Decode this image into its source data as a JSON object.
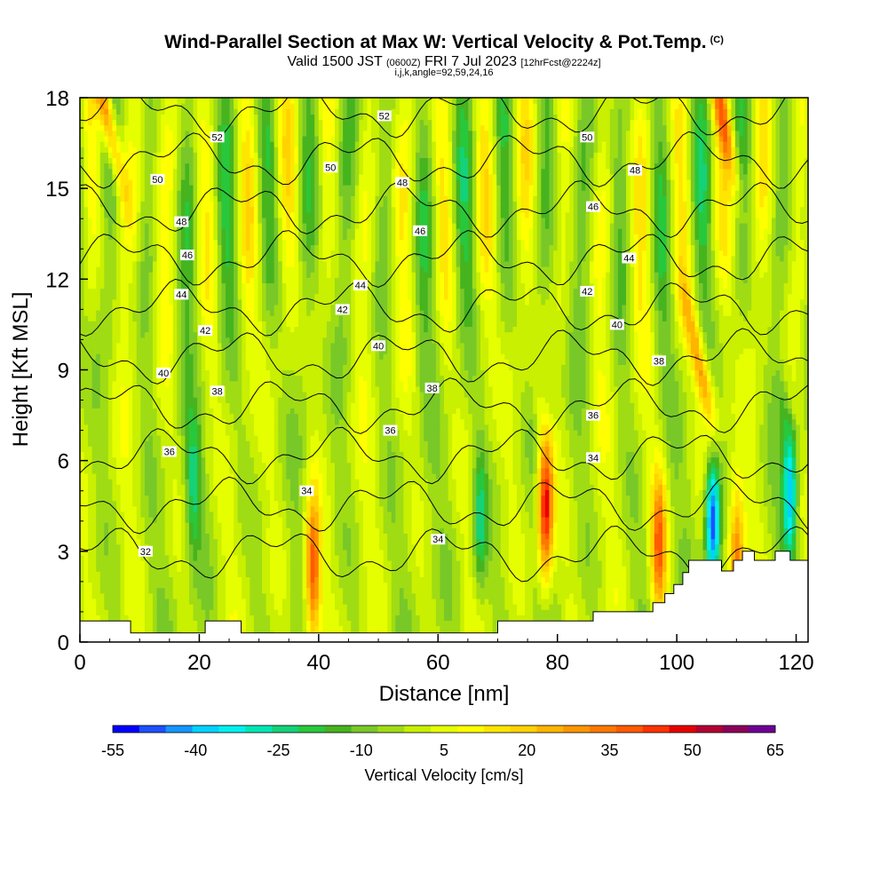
{
  "title": {
    "main": "Wind-Parallel Section at Max W: Vertical Velocity & Pot.Temp.",
    "copyright": "(C)",
    "valid_prefix": "Valid 1500 JST",
    "valid_utc": "(0600Z)",
    "valid_date": "FRI 7 Jul 2023",
    "forecast": "[12hrFcst@2224z]",
    "indices": "i,j,k,angle=92,59,24,16"
  },
  "chart_data": {
    "type": "heatmap",
    "xlabel": "Distance [nm]",
    "ylabel": "Height [Kft MSL]",
    "xlim": [
      0,
      122
    ],
    "ylim": [
      0,
      18
    ],
    "x_ticks": [
      "0",
      "20",
      "40",
      "60",
      "80",
      "100",
      "120"
    ],
    "y_ticks": [
      "0",
      "3",
      "6",
      "9",
      "12",
      "15",
      "18"
    ],
    "colorbar": {
      "label": "Vertical Velocity [cm/s]",
      "tick_labels": [
        "-55",
        "-40",
        "-25",
        "-10",
        "5",
        "20",
        "35",
        "50",
        "65"
      ],
      "range": [
        -55,
        65
      ],
      "step": 5,
      "colors": [
        "#0000ff",
        "#1e50ff",
        "#1496ff",
        "#00d2ff",
        "#00f0f0",
        "#00e6b4",
        "#14d278",
        "#28c83c",
        "#46b41e",
        "#78c828",
        "#a0dc14",
        "#c8f000",
        "#e6ff00",
        "#ffff00",
        "#ffe600",
        "#ffd200",
        "#ffb400",
        "#ff9600",
        "#ff7800",
        "#ff5a00",
        "#ff3200",
        "#e60000",
        "#b40032",
        "#8c005a",
        "#6e0096"
      ]
    },
    "updraft_cores": [
      {
        "x": 15,
        "z": 17.5,
        "w": 40
      },
      {
        "x": 39,
        "z": 2.3,
        "w": 45
      },
      {
        "x": 78,
        "z": 4.5,
        "w": 55
      },
      {
        "x": 97,
        "z": 3.2,
        "w": 38
      },
      {
        "x": 106,
        "z": 9.0,
        "w": 32
      },
      {
        "x": 110,
        "z": 2.6,
        "w": 40
      },
      {
        "x": 118,
        "z": 17.5,
        "w": 30
      }
    ],
    "downdraft_cores": [
      {
        "x": 106,
        "z": 4.0,
        "w": -55
      },
      {
        "x": 119,
        "z": 5.0,
        "w": -40
      },
      {
        "x": 67,
        "z": 4.0,
        "w": -25
      },
      {
        "x": 19,
        "z": 5.0,
        "w": -20
      }
    ],
    "theta_contours": [
      {
        "value": 32,
        "label_at": [
          11,
          3.0
        ]
      },
      {
        "value": 34,
        "label_at": [
          38,
          5.0
        ]
      },
      {
        "value": 34,
        "label_at": [
          60,
          3.4
        ]
      },
      {
        "value": 34,
        "label_at": [
          86,
          6.1
        ]
      },
      {
        "value": 36,
        "label_at": [
          15,
          6.3
        ]
      },
      {
        "value": 36,
        "label_at": [
          52,
          7.0
        ]
      },
      {
        "value": 36,
        "label_at": [
          86,
          7.5
        ]
      },
      {
        "value": 38,
        "label_at": [
          23,
          8.3
        ]
      },
      {
        "value": 38,
        "label_at": [
          59,
          8.4
        ]
      },
      {
        "value": 38,
        "label_at": [
          97,
          9.3
        ]
      },
      {
        "value": 40,
        "label_at": [
          14,
          8.9
        ]
      },
      {
        "value": 40,
        "label_at": [
          50,
          9.8
        ]
      },
      {
        "value": 40,
        "label_at": [
          90,
          10.5
        ]
      },
      {
        "value": 42,
        "label_at": [
          21,
          10.3
        ]
      },
      {
        "value": 42,
        "label_at": [
          44,
          11.0
        ]
      },
      {
        "value": 42,
        "label_at": [
          85,
          11.6
        ]
      },
      {
        "value": 44,
        "label_at": [
          17,
          11.5
        ]
      },
      {
        "value": 44,
        "label_at": [
          47,
          11.8
        ]
      },
      {
        "value": 44,
        "label_at": [
          92,
          12.7
        ]
      },
      {
        "value": 46,
        "label_at": [
          18,
          12.8
        ]
      },
      {
        "value": 46,
        "label_at": [
          57,
          13.6
        ]
      },
      {
        "value": 46,
        "label_at": [
          86,
          14.4
        ]
      },
      {
        "value": 48,
        "label_at": [
          17,
          13.9
        ]
      },
      {
        "value": 48,
        "label_at": [
          54,
          15.2
        ]
      },
      {
        "value": 48,
        "label_at": [
          93,
          15.6
        ]
      },
      {
        "value": 50,
        "label_at": [
          13,
          15.3
        ]
      },
      {
        "value": 50,
        "label_at": [
          42,
          15.7
        ]
      },
      {
        "value": 50,
        "label_at": [
          85,
          16.7
        ]
      },
      {
        "value": 52,
        "label_at": [
          23,
          16.7
        ]
      },
      {
        "value": 52,
        "label_at": [
          51,
          17.4
        ]
      }
    ],
    "terrain_profile": [
      [
        0,
        0.7
      ],
      [
        8.5,
        0.7
      ],
      [
        8.5,
        0.3
      ],
      [
        21,
        0.3
      ],
      [
        21,
        0.7
      ],
      [
        27,
        0.7
      ],
      [
        27,
        0.3
      ],
      [
        70,
        0.3
      ],
      [
        70,
        0.7
      ],
      [
        86,
        0.7
      ],
      [
        86,
        1.0
      ],
      [
        96,
        1.0
      ],
      [
        96,
        1.3
      ],
      [
        98,
        1.3
      ],
      [
        98,
        1.6
      ],
      [
        99.5,
        1.6
      ],
      [
        99.5,
        1.9
      ],
      [
        101,
        1.9
      ],
      [
        101,
        2.3
      ],
      [
        102,
        2.3
      ],
      [
        102,
        2.7
      ],
      [
        107.5,
        2.7
      ],
      [
        107.5,
        2.35
      ],
      [
        109.5,
        2.35
      ],
      [
        109.5,
        2.7
      ],
      [
        111,
        2.7
      ],
      [
        111,
        3.0
      ],
      [
        113,
        3.0
      ],
      [
        113,
        2.7
      ],
      [
        116.5,
        2.7
      ],
      [
        116.5,
        3.0
      ],
      [
        119,
        3.0
      ],
      [
        119,
        2.7
      ],
      [
        122,
        2.7
      ]
    ]
  }
}
